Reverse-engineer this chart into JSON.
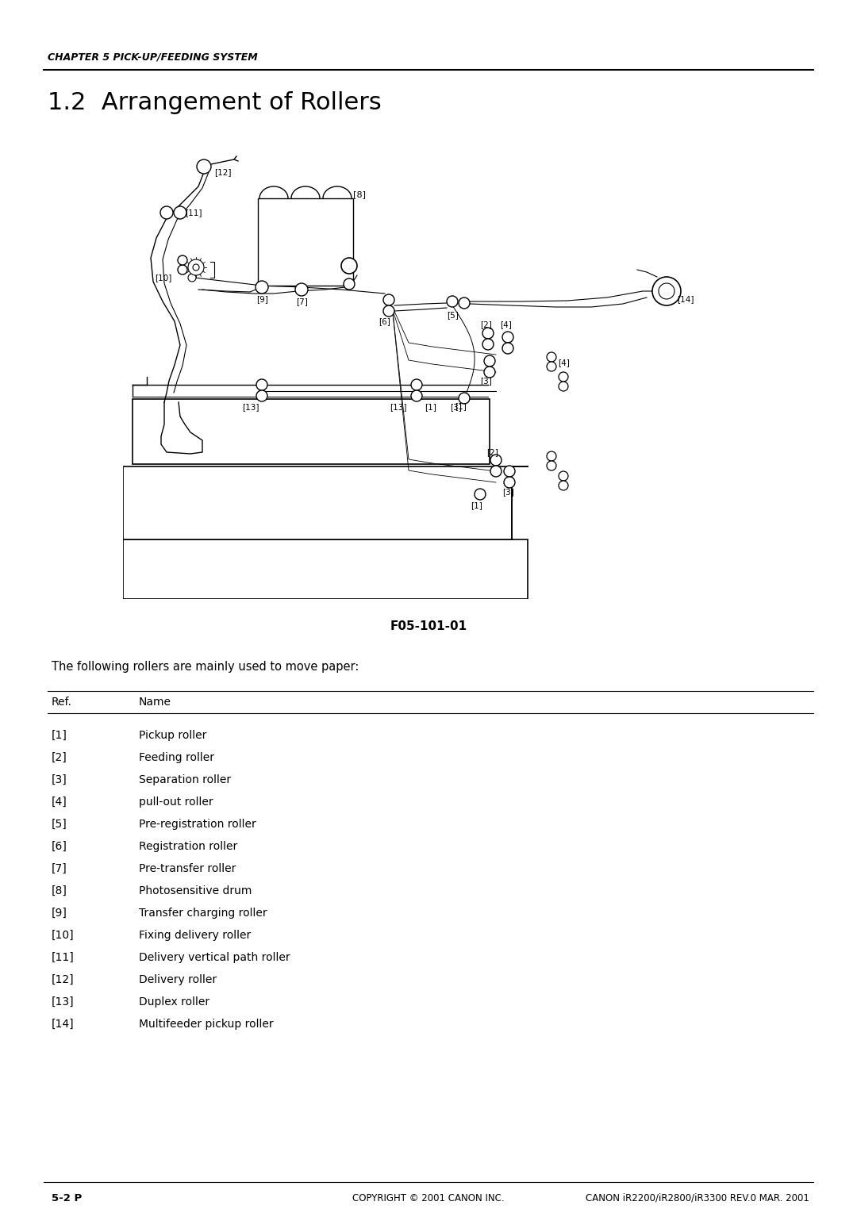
{
  "header_text": "CHAPTER 5 PICK-UP/FEEDING SYSTEM",
  "title": "1.2  Arrangement of Rollers",
  "diagram_caption": "F05-101-01",
  "intro_text": "The following rollers are mainly used to move paper:",
  "table_header": [
    "Ref.",
    "Name"
  ],
  "table_rows": [
    [
      "[1]",
      "Pickup roller"
    ],
    [
      "[2]",
      "Feeding roller"
    ],
    [
      "[3]",
      "Separation roller"
    ],
    [
      "[4]",
      "pull-out roller"
    ],
    [
      "[5]",
      "Pre-registration roller"
    ],
    [
      "[6]",
      "Registration roller"
    ],
    [
      "[7]",
      "Pre-transfer roller"
    ],
    [
      "[8]",
      "Photosensitive drum"
    ],
    [
      "[9]",
      "Transfer charging roller"
    ],
    [
      "[10]",
      "Fixing delivery roller"
    ],
    [
      "[11]",
      "Delivery vertical path roller"
    ],
    [
      "[12]",
      "Delivery roller"
    ],
    [
      "[13]",
      "Duplex roller"
    ],
    [
      "[14]",
      "Multifeeder pickup roller"
    ]
  ],
  "footer_left": "5-2 P",
  "footer_center": "COPYRIGHT © 2001 CANON INC.",
  "footer_right": "CANON iR2200/iR2800/iR3300 REV.0 MAR. 2001",
  "bg_color": "#ffffff",
  "text_color": "#000000",
  "page_width": 10.8,
  "page_height": 15.29
}
